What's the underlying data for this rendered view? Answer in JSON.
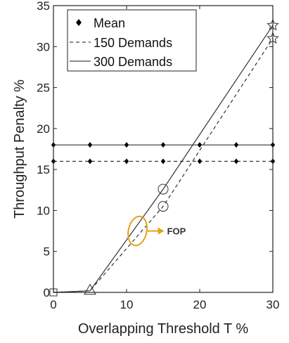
{
  "chart_data": {
    "type": "line",
    "xlabel": "Overlapping Threshold T %",
    "ylabel": "Throughput Penalty %",
    "xlim": [
      0,
      30
    ],
    "ylim": [
      0,
      35
    ],
    "x_ticks": [
      0,
      10,
      20,
      30
    ],
    "y_ticks": [
      0,
      5,
      10,
      15,
      20,
      25,
      30,
      35
    ],
    "grid": false,
    "legend_position": "top-left",
    "legend": [
      "Mean",
      "150 Demands",
      "300 Demands"
    ],
    "series": [
      {
        "name": "150 Demands",
        "style": "dashed",
        "x": [
          0,
          5,
          15,
          30
        ],
        "y": [
          0,
          0.2,
          10.5,
          31
        ]
      },
      {
        "name": "300 Demands",
        "style": "solid",
        "x": [
          0,
          5,
          15,
          30
        ],
        "y": [
          0,
          0.2,
          12.6,
          32.6
        ]
      },
      {
        "name": "Mean 150 Demands",
        "style": "dashed",
        "marker": "diamond",
        "x": [
          0,
          5,
          10,
          15,
          20,
          25,
          30
        ],
        "y": [
          16,
          16,
          16,
          16,
          16,
          16,
          16
        ]
      },
      {
        "name": "Mean 300 Demands",
        "style": "solid",
        "marker": "diamond",
        "x": [
          0,
          5,
          10,
          15,
          20,
          25,
          30
        ],
        "y": [
          18,
          18,
          18,
          18,
          18,
          18,
          18
        ]
      }
    ],
    "markers": [
      {
        "shape": "square",
        "x": 0,
        "y": 0
      },
      {
        "shape": "triangle",
        "x": 5,
        "y": 0.2
      },
      {
        "shape": "circle",
        "x": 15,
        "y": 12.6
      },
      {
        "shape": "circle",
        "x": 15,
        "y": 10.5
      },
      {
        "shape": "star",
        "x": 30,
        "y": 32.6
      },
      {
        "shape": "star",
        "x": 30,
        "y": 31
      }
    ],
    "annotation": {
      "text": "FOP",
      "x": 11.5,
      "y": 7.5,
      "color": "#E3A21A"
    }
  }
}
